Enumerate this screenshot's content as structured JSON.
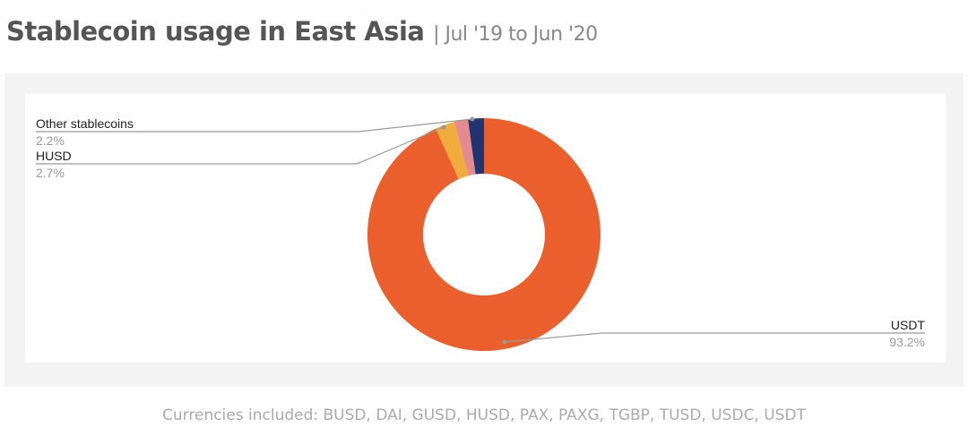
{
  "title": "Stablecoin usage in East Asia",
  "subtitle": "| Jul '19 to Jun '20",
  "footnote": "Currencies included: BUSD, DAI, GUSD, HUSD, PAX, PAXG, TGBP, TUSD, USDC, USDT",
  "chart_data": {
    "type": "pie",
    "donut": true,
    "slices": [
      {
        "label": "USDT",
        "value_label": "93.2%",
        "value": 93.2,
        "color": "#ea5f2b"
      },
      {
        "label": "HUSD",
        "value_label": "2.7%",
        "value": 2.7,
        "color": "#f0ad3c"
      },
      {
        "label": "",
        "value_label": "",
        "value": 1.9,
        "color": "#e58a8f"
      },
      {
        "label": "Other stablecoins",
        "value_label": "2.2%",
        "value": 2.2,
        "color": "#1f3570"
      }
    ]
  }
}
